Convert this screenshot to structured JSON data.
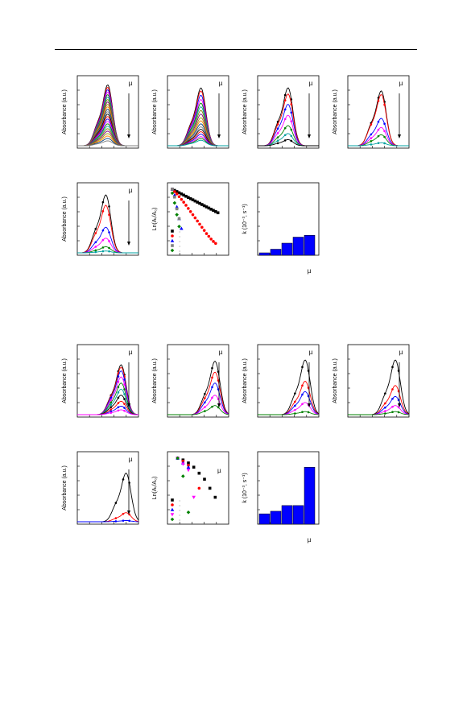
{
  "labels": {
    "absorbance": "Absorbance (a.u.)",
    "ln_ratio": "Ln(Aₜ/A₀)",
    "rate": "k (10⁻³, s⁻¹)",
    "mu": "µ"
  },
  "colors": {
    "black": "#000000",
    "red": "#ff0000",
    "blue": "#0000ff",
    "magenta": "#ff00ff",
    "green": "#008000",
    "bar": "#0000ff",
    "gray": "#808080"
  },
  "chart_data": [
    {
      "panel": "a1",
      "type": "line",
      "ylabel": "Absorbance (a.u.)",
      "annotation": "µ",
      "peaks": [
        1.0,
        0.96,
        0.92,
        0.88,
        0.84,
        0.8,
        0.76,
        0.72,
        0.68,
        0.64,
        0.6,
        0.56,
        0.52,
        0.48,
        0.44,
        0.4,
        0.36,
        0.32,
        0.28,
        0.24,
        0.2,
        0.16,
        0.12,
        0.08
      ],
      "peak_x": 0.5,
      "shoulder": 0.55
    },
    {
      "panel": "a2",
      "type": "line",
      "ylabel": "Absorbance (a.u.)",
      "annotation": "µ",
      "peaks": [
        0.95,
        0.9,
        0.83,
        0.76,
        0.7,
        0.64,
        0.58,
        0.52,
        0.46,
        0.41,
        0.36,
        0.31,
        0.27,
        0.23,
        0.19,
        0.15,
        0.12,
        0.09
      ],
      "peak_x": 0.55,
      "shoulder": 0.55
    },
    {
      "panel": "a3",
      "type": "line",
      "ylabel": "Absorbance (a.u.)",
      "annotation": "µ",
      "peaks": [
        0.95,
        0.85,
        0.68,
        0.5,
        0.33,
        0.2,
        0.1
      ],
      "peak_x": 0.5,
      "shoulder": 0.6
    },
    {
      "panel": "a4",
      "type": "line",
      "ylabel": "Absorbance (a.u.)",
      "annotation": "µ",
      "peaks": [
        0.9,
        0.84,
        0.45,
        0.3,
        0.18,
        0.05
      ],
      "peak_x": 0.55,
      "shoulder": 0.6
    },
    {
      "panel": "a5",
      "type": "line",
      "ylabel": "Absorbance (a.u.)",
      "annotation": "µ",
      "peaks": [
        0.95,
        0.78,
        0.42,
        0.24,
        0.1,
        0.03
      ],
      "peak_x": 0.47,
      "shoulder": 0.6
    },
    {
      "panel": "a6",
      "type": "scatter",
      "ylabel": "Ln(Aₜ/A₀)",
      "series": [
        {
          "color": "#000000",
          "marker": "square",
          "x": [
            0,
            1,
            2,
            3,
            4,
            5,
            6,
            7,
            8,
            9,
            10,
            11,
            12,
            13,
            14,
            15,
            16,
            17,
            18,
            19,
            20
          ],
          "y": [
            0,
            -0.03,
            -0.06,
            -0.09,
            -0.12,
            -0.15,
            -0.18,
            -0.21,
            -0.24,
            -0.27,
            -0.3,
            -0.33,
            -0.36,
            -0.39,
            -0.42,
            -0.45,
            -0.48,
            -0.51,
            -0.54,
            -0.57,
            -0.6
          ]
        },
        {
          "color": "#ff0000",
          "marker": "circle",
          "x": [
            0,
            1,
            2,
            3,
            4,
            5,
            6,
            7,
            8,
            9,
            10,
            11,
            12,
            13,
            14,
            15,
            16,
            17,
            18,
            19
          ],
          "y": [
            0,
            -0.06,
            -0.12,
            -0.19,
            -0.26,
            -0.33,
            -0.41,
            -0.49,
            -0.57,
            -0.65,
            -0.73,
            -0.81,
            -0.89,
            -0.97,
            -1.05,
            -1.13,
            -1.2,
            -1.27,
            -1.33,
            -1.38
          ]
        },
        {
          "color": "#0000ff",
          "marker": "triangle",
          "x": [
            0,
            1,
            2,
            3,
            4
          ],
          "y": [
            0,
            -0.15,
            -0.45,
            -0.75,
            -1.0
          ]
        },
        {
          "color": "#808080",
          "marker": "square",
          "x": [
            0,
            1,
            2,
            3
          ],
          "y": [
            0,
            -0.2,
            -0.5,
            -0.75
          ]
        },
        {
          "color": "#008000",
          "marker": "diamond",
          "x": [
            0,
            1,
            2,
            3
          ],
          "y": [
            -0.1,
            -0.35,
            -0.65,
            -0.95
          ]
        }
      ]
    },
    {
      "panel": "a7",
      "type": "bar",
      "ylabel": "k (10⁻³, s⁻¹)",
      "xnote": "µ",
      "values": [
        0.4,
        1.0,
        2.0,
        3.0,
        3.3
      ],
      "ylim": [
        0,
        12
      ]
    },
    {
      "panel": "b1",
      "type": "line",
      "ylabel": "Absorbance (a.u.)",
      "annotation": "µ",
      "peaks": [
        0.82,
        0.78,
        0.72,
        0.62,
        0.52,
        0.42,
        0.32,
        0.22,
        0.14,
        0.08
      ],
      "peak_x": 0.72,
      "shoulder": 0.55
    },
    {
      "panel": "b2",
      "type": "line",
      "ylabel": "Absorbance (a.u.)",
      "annotation": "µ",
      "peaks": [
        0.88,
        0.7,
        0.52,
        0.32,
        0.15
      ],
      "peak_x": 0.78,
      "shoulder": 0.55
    },
    {
      "panel": "b3",
      "type": "line",
      "ylabel": "Absorbance (a.u.)",
      "annotation": "µ",
      "peaks": [
        0.9,
        0.55,
        0.38,
        0.2,
        0.05
      ],
      "peak_x": 0.78,
      "shoulder": 0.55
    },
    {
      "panel": "b4",
      "type": "line",
      "ylabel": "Absorbance (a.u.)",
      "annotation": "µ",
      "peaks": [
        0.9,
        0.48,
        0.3,
        0.15,
        0.05
      ],
      "peak_x": 0.78,
      "shoulder": 0.55
    },
    {
      "panel": "b5",
      "type": "line",
      "ylabel": "Absorbance (a.u.)",
      "annotation": "µ",
      "peaks": [
        0.8,
        0.15,
        0.02
      ],
      "peak_x": 0.8,
      "shoulder": 0.55
    },
    {
      "panel": "b6",
      "type": "scatter",
      "ylabel": "Ln(Aₜ/A₀)",
      "annotation": "µ",
      "series": [
        {
          "color": "#000000",
          "marker": "square",
          "x": [
            1,
            2,
            3,
            4,
            5,
            6,
            7,
            8
          ],
          "y": [
            0,
            -0.03,
            -0.08,
            -0.15,
            -0.25,
            -0.35,
            -0.5,
            -0.65
          ]
        },
        {
          "color": "#ff0000",
          "marker": "circle",
          "x": [
            1,
            2,
            3,
            5
          ],
          "y": [
            0,
            -0.05,
            -0.12,
            -0.5
          ]
        },
        {
          "color": "#0000ff",
          "marker": "triangle",
          "x": [
            1,
            2,
            3
          ],
          "y": [
            0,
            -0.08,
            -0.15
          ]
        },
        {
          "color": "#ff00ff",
          "marker": "tri-down",
          "x": [
            1,
            2,
            3,
            4
          ],
          "y": [
            0,
            -0.1,
            -0.2,
            -0.65
          ]
        },
        {
          "color": "#008000",
          "marker": "diamond",
          "x": [
            1,
            2,
            3
          ],
          "y": [
            0,
            -0.3,
            -0.9
          ]
        }
      ]
    },
    {
      "panel": "b7",
      "type": "bar",
      "ylabel": "k (10⁻³, s⁻¹)",
      "xnote": "µ",
      "values": [
        2.0,
        2.5,
        3.6,
        3.6,
        11.0
      ],
      "ylim": [
        0,
        14
      ]
    }
  ]
}
